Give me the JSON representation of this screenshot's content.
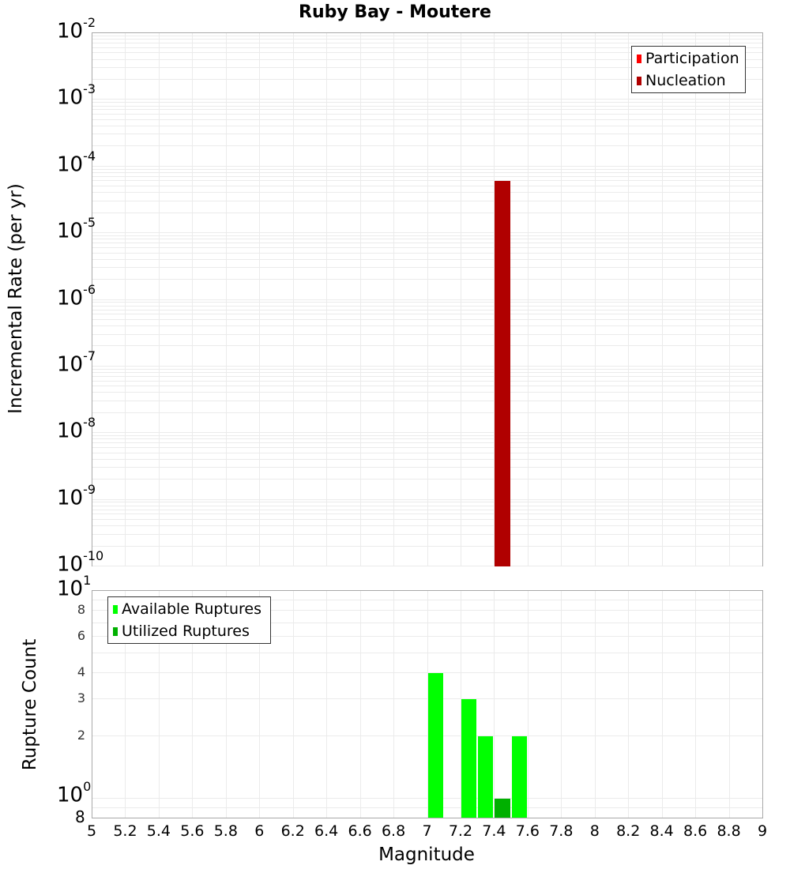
{
  "chart_data": [
    {
      "type": "bar",
      "title": "Ruby Bay - Moutere",
      "xlabel": "Magnitude",
      "ylabel": "Incremental Rate (per yr)",
      "yscale": "log",
      "ylim": [
        1e-10,
        0.01
      ],
      "xlim": [
        5,
        9
      ],
      "grid": true,
      "legend_position": "top-right",
      "y_ticks": [
        "10^-2",
        "10^-3",
        "10^-4",
        "10^-5",
        "10^-6",
        "10^-7",
        "10^-8",
        "10^-9",
        "10^-10"
      ],
      "series": [
        {
          "name": "Participation",
          "color": "#ff0000",
          "x": [],
          "values": []
        },
        {
          "name": "Nucleation",
          "color": "#b00000",
          "x": [
            7.45
          ],
          "values": [
            6e-05
          ]
        }
      ]
    },
    {
      "type": "bar",
      "title": "",
      "xlabel": "Magnitude",
      "ylabel": "Rupture Count",
      "yscale": "log",
      "ylim": [
        0.8,
        10
      ],
      "xlim": [
        5,
        9
      ],
      "grid": true,
      "legend_position": "top-left",
      "x_ticks": [
        "5",
        "5.2",
        "5.4",
        "5.6",
        "5.8",
        "6",
        "6.2",
        "6.4",
        "6.6",
        "6.8",
        "7",
        "7.2",
        "7.4",
        "7.6",
        "7.8",
        "8",
        "8.2",
        "8.4",
        "8.6",
        "8.8",
        "9"
      ],
      "y_ticks": [
        "8",
        "10^0",
        "2",
        "3",
        "4",
        "6",
        "8",
        "10^1"
      ],
      "series": [
        {
          "name": "Available Ruptures",
          "color": "#00ff00",
          "x": [
            7.05,
            7.25,
            7.35,
            7.55
          ],
          "values": [
            4,
            3,
            2,
            2
          ]
        },
        {
          "name": "Utilized Ruptures",
          "color": "#00b000",
          "x": [
            7.45
          ],
          "values": [
            1
          ]
        }
      ]
    }
  ],
  "title": "Ruby Bay - Moutere",
  "top": {
    "ylabel": "Incremental Rate (per yr)",
    "yticks": [
      {
        "base": "10",
        "exp": "-2"
      },
      {
        "base": "10",
        "exp": "-3"
      },
      {
        "base": "10",
        "exp": "-4"
      },
      {
        "base": "10",
        "exp": "-5"
      },
      {
        "base": "10",
        "exp": "-6"
      },
      {
        "base": "10",
        "exp": "-7"
      },
      {
        "base": "10",
        "exp": "-8"
      },
      {
        "base": "10",
        "exp": "-9"
      },
      {
        "base": "10",
        "exp": "-10"
      }
    ],
    "legend": [
      "Participation",
      "Nucleation"
    ]
  },
  "bottom": {
    "ylabel": "Rupture Count",
    "ytick_10_1": {
      "base": "10",
      "exp": "1"
    },
    "ytick_10_0": {
      "base": "10",
      "exp": "0"
    },
    "ytick_small": [
      "8",
      "6",
      "4",
      "3",
      "2"
    ],
    "ytick_bottom": "8",
    "legend": [
      "Available Ruptures",
      "Utilized Ruptures"
    ]
  },
  "xaxis": {
    "label": "Magnitude",
    "ticks": [
      "5",
      "5.2",
      "5.4",
      "5.6",
      "5.8",
      "6",
      "6.2",
      "6.4",
      "6.6",
      "6.8",
      "7",
      "7.2",
      "7.4",
      "7.6",
      "7.8",
      "8",
      "8.2",
      "8.4",
      "8.6",
      "8.8",
      "9"
    ]
  }
}
